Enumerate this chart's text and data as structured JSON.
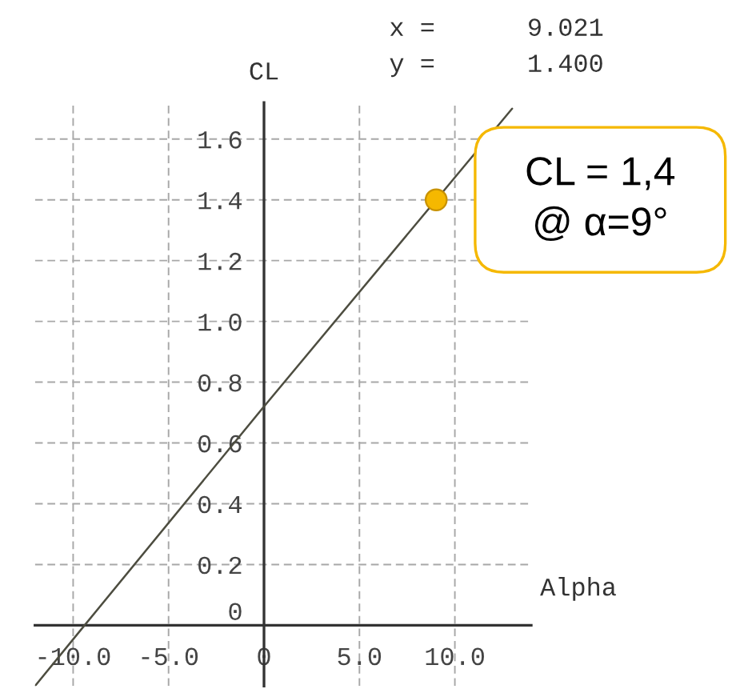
{
  "chart_data": {
    "type": "line",
    "xlabel": "Alpha",
    "ylabel": "CL",
    "annotations": [
      "x =      9.021",
      "y =      1.400",
      {
        "text": "CL = 1,4\n@ α=9°",
        "x": 9,
        "y": 1.4
      }
    ],
    "series": [
      {
        "x": [
          -12,
          -9.4,
          0,
          9.021,
          13
        ],
        "values": [
          -0.2,
          0,
          0.72,
          1.4,
          1.7
        ],
        "color": "#4d4d40",
        "line_style": "solid"
      },
      {
        "type": "scatter",
        "x": [
          9.021
        ],
        "values": [
          1.4
        ],
        "color": "#f5b800",
        "marker": "circle"
      }
    ],
    "xlim": [
      -12,
      14
    ],
    "ylim": [
      -0.2,
      1.72
    ],
    "xticks": [
      {
        "value": -10,
        "label": "-10.0"
      },
      {
        "value": -5,
        "label": "-5.0"
      },
      0,
      {
        "value": 5,
        "label": "5.0"
      },
      {
        "value": 10,
        "label": "10.0"
      }
    ],
    "yticks": [
      0,
      0.2,
      0.4,
      0.6,
      0.8,
      {
        "value": 1,
        "label": "1.0"
      },
      1.2,
      1.4,
      1.6
    ],
    "grid": true
  }
}
